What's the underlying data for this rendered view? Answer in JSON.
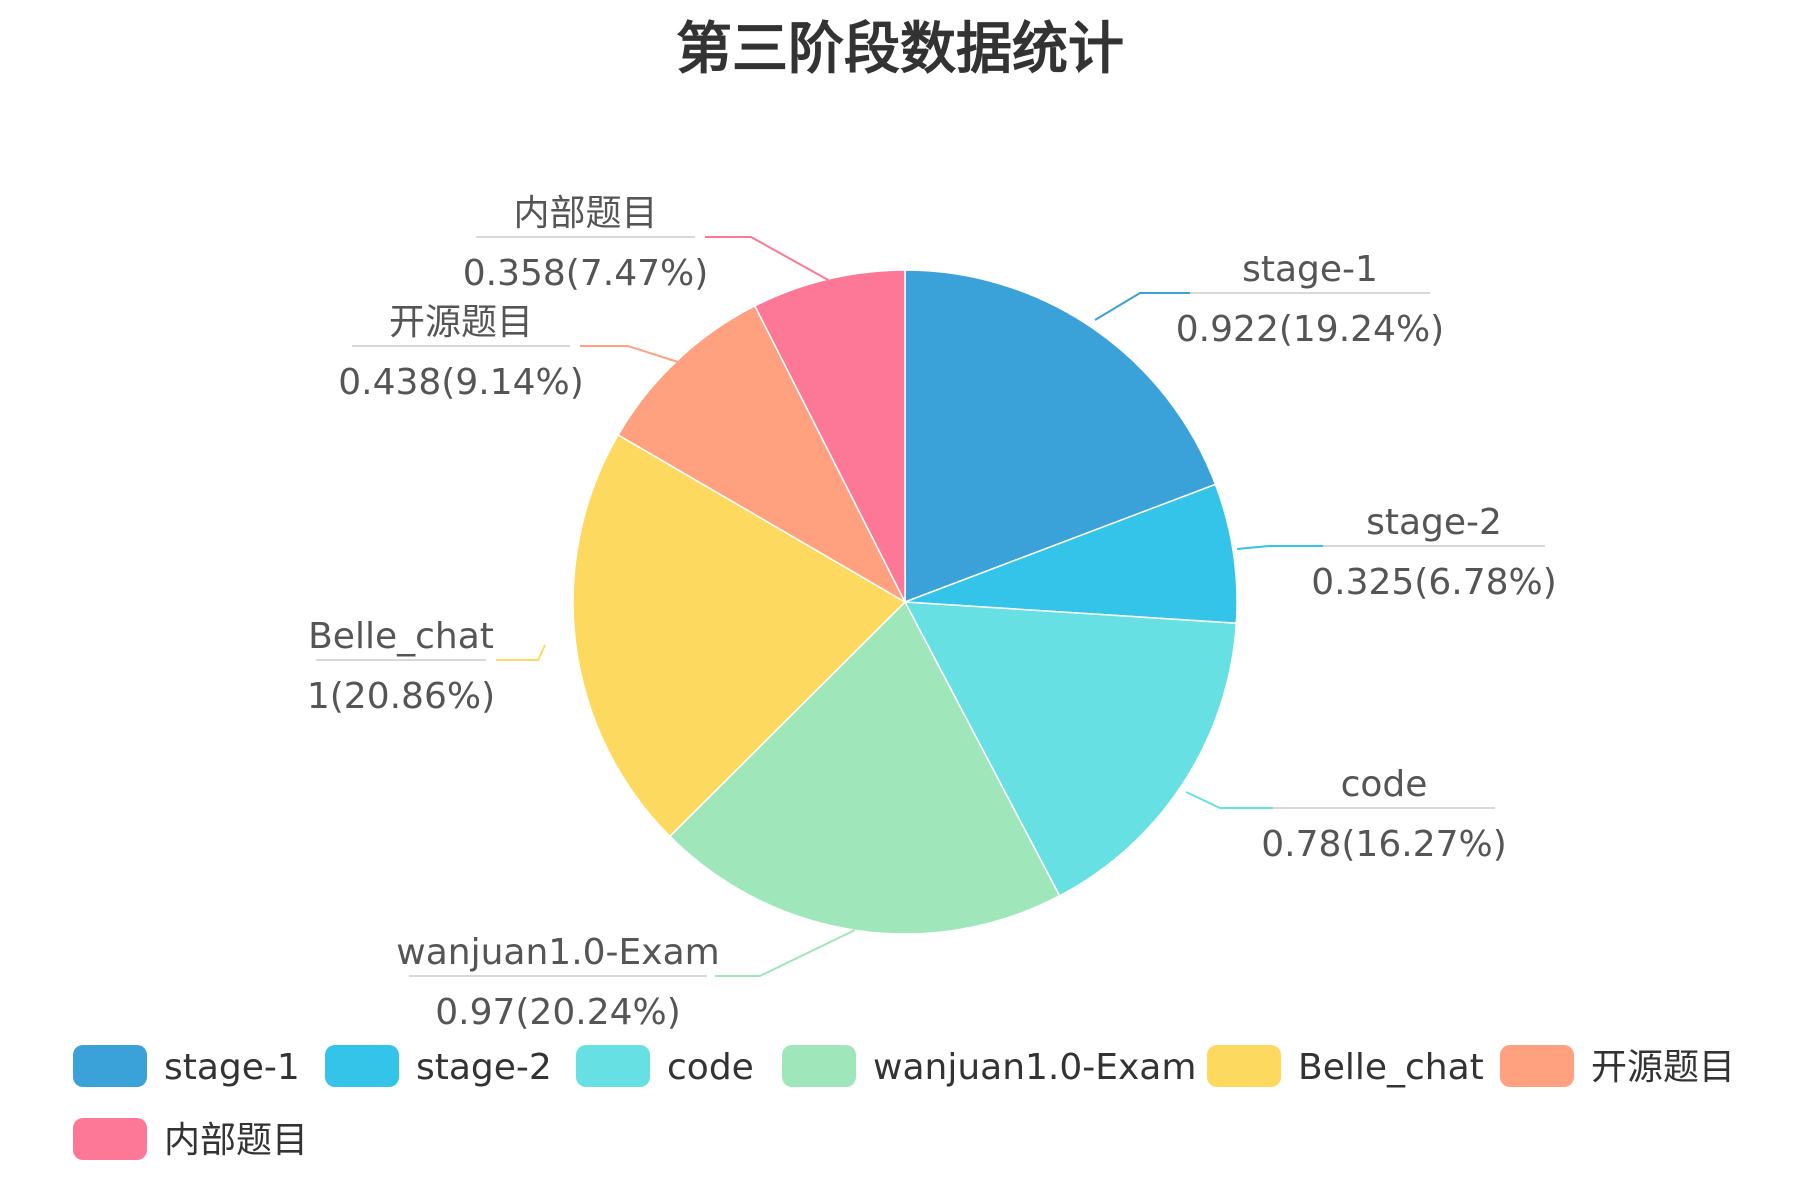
{
  "chart_data": {
    "type": "pie",
    "title": "第三阶段数据统计",
    "legend_position": "bottom-left",
    "slices": [
      {
        "name": "stage-1",
        "value": 0.922,
        "label_value": "0.922(19.24%)",
        "color": "#3aa1d9"
      },
      {
        "name": "stage-2",
        "value": 0.325,
        "label_value": "0.325(6.78%)",
        "color": "#34c4e9"
      },
      {
        "name": "code",
        "value": 0.78,
        "label_value": "0.78(16.27%)",
        "color": "#67e0e3"
      },
      {
        "name": "wanjuan1.0-Exam",
        "value": 0.97,
        "label_value": "0.97(20.24%)",
        "color": "#a0e6bb"
      },
      {
        "name": "Belle_chat",
        "value": 1,
        "label_value": "1(20.86%)",
        "color": "#fdd95f"
      },
      {
        "name": "开源题目",
        "value": 0.438,
        "label_value": "0.438(9.14%)",
        "color": "#ffa07f"
      },
      {
        "name": "内部题目",
        "value": 0.358,
        "label_value": "0.358(7.47%)",
        "color": "#fd7796"
      }
    ]
  }
}
